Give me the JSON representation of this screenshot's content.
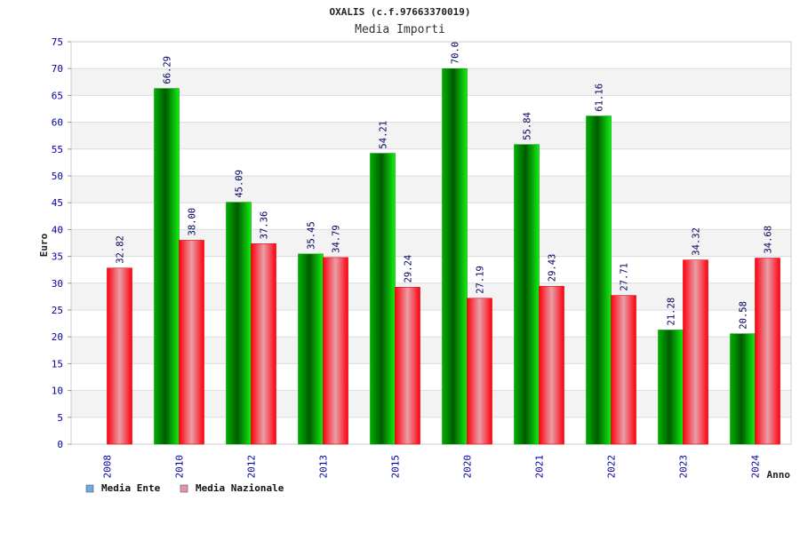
{
  "chart_data": {
    "type": "bar",
    "title": "OXALIS (c.f.97663370019)",
    "subtitle": "Media Importi",
    "xlabel": "Anno",
    "ylabel": "Euro",
    "ylim": [
      0,
      75
    ],
    "yticks": [
      0,
      5,
      10,
      15,
      20,
      25,
      30,
      35,
      40,
      45,
      50,
      55,
      60,
      65,
      70,
      75
    ],
    "grid": true,
    "legend_position": "bottom-left",
    "categories": [
      "2008",
      "2010",
      "2012",
      "2013",
      "2015",
      "2020",
      "2021",
      "2022",
      "2023",
      "2024"
    ],
    "series": [
      {
        "name": "Media Ente",
        "values": [
          null,
          66.29,
          45.09,
          35.45,
          54.21,
          70.0,
          55.84,
          61.16,
          21.28,
          20.58
        ],
        "labels": [
          "",
          "66.29",
          "45.09",
          "35.45",
          "54.21",
          "70.0",
          "55.84",
          "61.16",
          "21.28",
          "20.58"
        ],
        "color": "#00c000",
        "legend_color": "#6fa8e8"
      },
      {
        "name": "Media Nazionale",
        "values": [
          32.82,
          38.0,
          37.36,
          34.79,
          29.24,
          27.19,
          29.43,
          27.71,
          34.32,
          34.68
        ],
        "labels": [
          "32.82",
          "38.00",
          "37.36",
          "34.79",
          "29.24",
          "27.19",
          "29.43",
          "27.71",
          "34.32",
          "34.68"
        ],
        "color": "#ff0000",
        "legend_color": "#e88fb8"
      }
    ]
  }
}
